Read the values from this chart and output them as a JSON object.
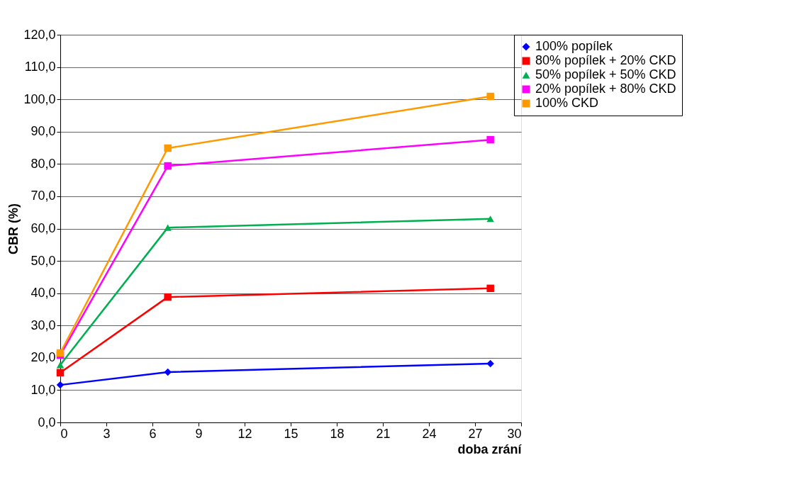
{
  "chart_data": {
    "type": "line",
    "xlabel": "doba zrání",
    "ylabel": "CBR (%)",
    "x": [
      0,
      7,
      28
    ],
    "series": [
      {
        "name": "100% popílek",
        "color": "#0000ff",
        "marker": "diamond",
        "values": [
          11.6,
          15.6,
          18.2
        ]
      },
      {
        "name": "80% popílek + 20% CKD",
        "color": "#ff0000",
        "marker": "square",
        "values": [
          15.4,
          38.8,
          41.5
        ]
      },
      {
        "name": "50% popílek + 50% CKD",
        "color": "#00b050",
        "marker": "triangle",
        "values": [
          17.8,
          60.3,
          63.0
        ]
      },
      {
        "name": "20% popílek + 80% CKD",
        "color": "#ff00ff",
        "marker": "square",
        "values": [
          20.8,
          79.4,
          87.5
        ]
      },
      {
        "name": "100% CKD",
        "color": "#ff9900",
        "marker": "square",
        "values": [
          21.5,
          84.9,
          100.9
        ]
      }
    ],
    "xlim": [
      0,
      30
    ],
    "xticks": [
      0,
      3,
      6,
      9,
      12,
      15,
      18,
      21,
      24,
      27,
      30
    ],
    "ylim": [
      0,
      120
    ],
    "yticks": [
      {
        "value": 0,
        "label": "0,0"
      },
      {
        "value": 10,
        "label": "10,0"
      },
      {
        "value": 20,
        "label": "20,0"
      },
      {
        "value": 30,
        "label": "30,0"
      },
      {
        "value": 40,
        "label": "40,0"
      },
      {
        "value": 50,
        "label": "50,0"
      },
      {
        "value": 60,
        "label": "60,0"
      },
      {
        "value": 70,
        "label": "70,0"
      },
      {
        "value": 80,
        "label": "80,0"
      },
      {
        "value": 90,
        "label": "90,0"
      },
      {
        "value": 100,
        "label": "100,0"
      },
      {
        "value": 110,
        "label": "110,0"
      },
      {
        "value": 120,
        "label": "120,0"
      }
    ],
    "grid": "y",
    "legend": "top right",
    "line_style": "solid"
  }
}
